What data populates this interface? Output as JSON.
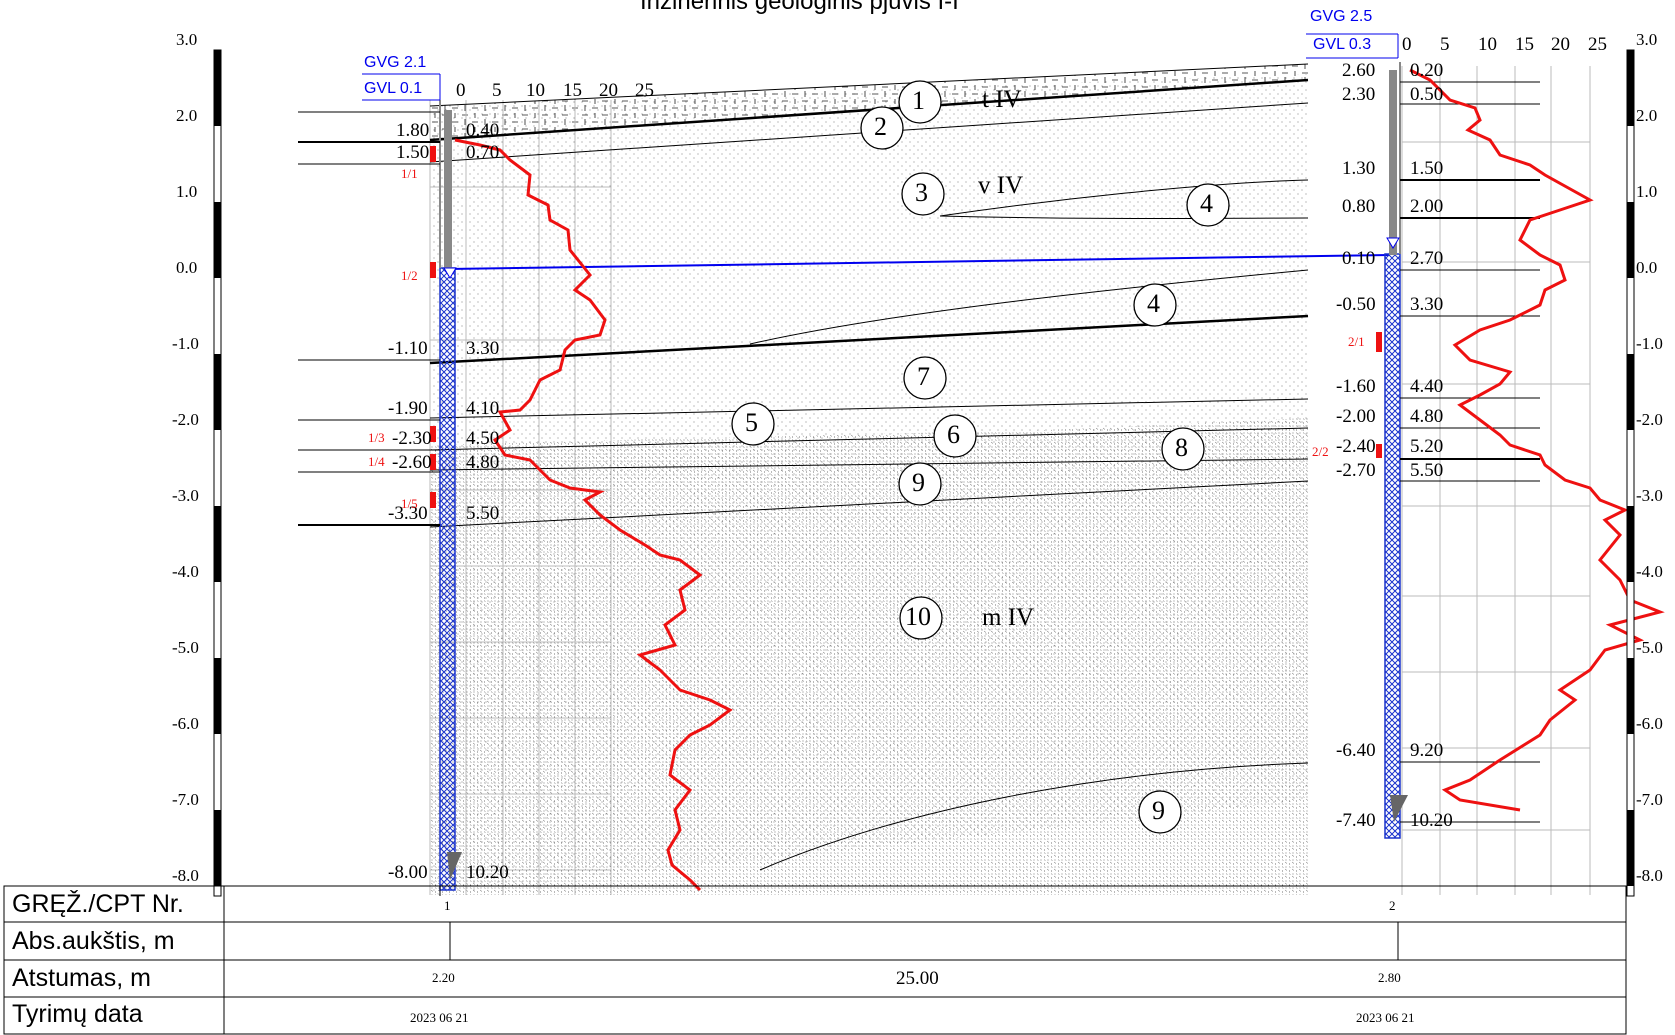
{
  "title": "Inžinerinis geologinis pjūvis I-I",
  "colors": {
    "line": "#000000",
    "cpt": "#ee1111",
    "water": "#0000ee",
    "casing": "#1a33cc",
    "grid": "#bbbbbb"
  },
  "axis": {
    "ticks": [
      "3.0",
      "2.0",
      "1.0",
      "0.0",
      "-1.0",
      "-2.0",
      "-3.0",
      "-4.0",
      "-5.0",
      "-6.0",
      "-7.0",
      "-8.0"
    ]
  },
  "cpt_scale": [
    "0",
    "5",
    "10",
    "15",
    "20",
    "25"
  ],
  "boreholes": [
    {
      "id": "1",
      "gvg": "GVG 2.1",
      "gvl": "GVL 0.1",
      "elevations": [
        "1.80",
        "1.50",
        "-1.10",
        "-1.90",
        "-2.30",
        "-2.60",
        "-3.30",
        "-8.00"
      ],
      "depths": [
        "0.40",
        "0.70",
        "3.30",
        "4.10",
        "4.50",
        "4.80",
        "5.50",
        "10.20"
      ],
      "samples": [
        "1/1",
        "1/2",
        "1/3",
        "1/4",
        "1/5"
      ],
      "distance": "2.20",
      "date": "2023 06 21"
    },
    {
      "id": "2",
      "gvg": "GVG 2.5",
      "gvl": "GVL 0.3",
      "elevations": [
        "2.60",
        "2.30",
        "1.30",
        "0.80",
        "0.10",
        "-0.50",
        "-1.60",
        "-2.00",
        "-2.40",
        "-2.70",
        "-6.40",
        "-7.40"
      ],
      "depths": [
        "0.20",
        "0.50",
        "1.50",
        "2.00",
        "2.70",
        "3.30",
        "4.40",
        "4.80",
        "5.20",
        "5.50",
        "9.20",
        "10.20"
      ],
      "samples": [
        "2/1",
        "2/2"
      ],
      "distance": "2.80",
      "date": "2023 06 21"
    }
  ],
  "layers": [
    "1",
    "2",
    "3",
    "4",
    "4",
    "7",
    "5",
    "6",
    "8",
    "9",
    "10",
    "9"
  ],
  "genesis": [
    "t IV",
    "v IV",
    "m IV"
  ],
  "table": {
    "rows": [
      "GRĘŽ./CPT Nr.",
      "Abs.aukštis, m",
      "Atstumas, m",
      "Tyrimų data"
    ],
    "span_distance": "25.00"
  }
}
